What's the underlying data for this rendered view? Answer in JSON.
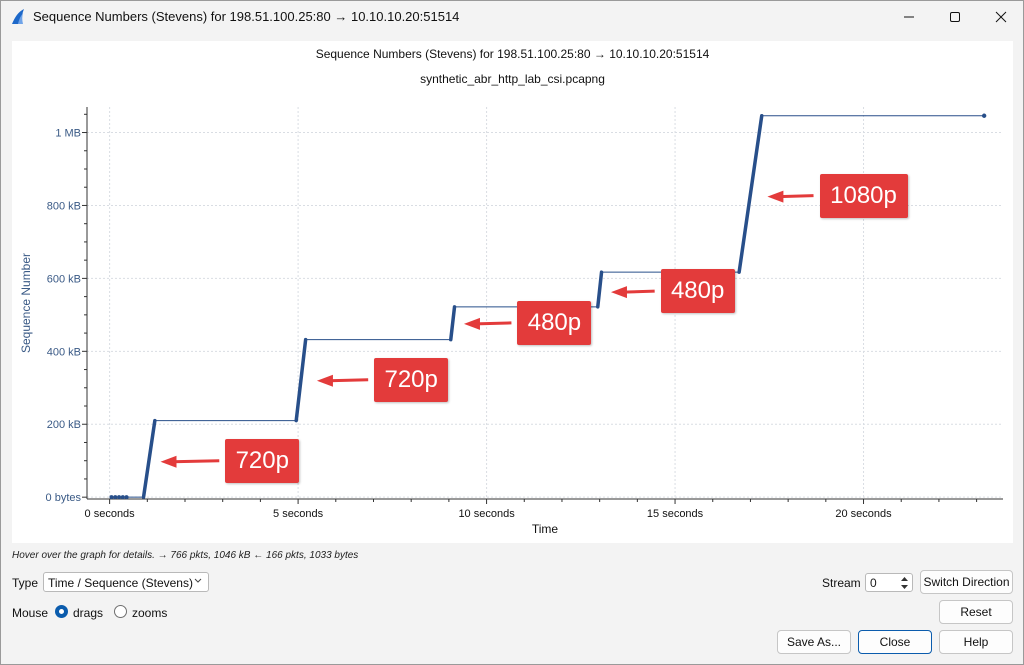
{
  "window": {
    "title": "Sequence Numbers (Stevens) for 198.51.100.25:80 → 10.10.10.20:51514",
    "icon": "wireshark-fin-icon"
  },
  "plot": {
    "title": "Sequence Numbers (Stevens) for 198.51.100.25:80 → 10.10.10.20:51514",
    "subtitle": "synthetic_abr_http_lab_csi.pcapng"
  },
  "chart_data": {
    "type": "scatter",
    "title": "Sequence Numbers (Stevens) for 198.51.100.25:80 → 10.10.10.20:51514",
    "subtitle": "synthetic_abr_http_lab_csi.pcapng",
    "xlabel": "Time",
    "ylabel": "Sequence Number",
    "x_unit": "seconds",
    "y_unit": "bytes",
    "xlim": [
      -0.6,
      23.7
    ],
    "ylim": [
      -5000,
      1070000
    ],
    "xticks": [
      {
        "value": 0,
        "label": "0 seconds"
      },
      {
        "value": 5,
        "label": "5 seconds"
      },
      {
        "value": 10,
        "label": "10 seconds"
      },
      {
        "value": 15,
        "label": "15 seconds"
      },
      {
        "value": 20,
        "label": "20 seconds"
      }
    ],
    "yticks": [
      {
        "value": 0,
        "label": "0 bytes"
      },
      {
        "value": 200000,
        "label": "200 kB"
      },
      {
        "value": 400000,
        "label": "400 kB"
      },
      {
        "value": 600000,
        "label": "600 kB"
      },
      {
        "value": 800000,
        "label": "800 kB"
      },
      {
        "value": 1000000,
        "label": "1 MB"
      }
    ],
    "grid": true,
    "color": "#284f8a",
    "handshake_points": [
      {
        "x": 0.05,
        "y": 0
      },
      {
        "x": 0.15,
        "y": 0
      },
      {
        "x": 0.25,
        "y": 0
      },
      {
        "x": 0.35,
        "y": 0
      },
      {
        "x": 0.45,
        "y": 0
      }
    ],
    "bursts": [
      {
        "x_start": 0.9,
        "x_end": 1.2,
        "y_start": 0,
        "y_end": 210000
      },
      {
        "x_start": 4.95,
        "x_end": 5.2,
        "y_start": 210000,
        "y_end": 432000
      },
      {
        "x_start": 9.05,
        "x_end": 9.15,
        "y_start": 432000,
        "y_end": 522000
      },
      {
        "x_start": 12.95,
        "x_end": 13.05,
        "y_start": 522000,
        "y_end": 617000
      },
      {
        "x_start": 16.7,
        "x_end": 17.3,
        "y_start": 617000,
        "y_end": 1046000
      }
    ],
    "final_point": {
      "x": 23.2,
      "y": 1046000
    },
    "annotations": [
      {
        "text": "720p",
        "x": 4.05,
        "y": 100000,
        "arrow_to_x": 1.35,
        "arrow_to_y": 100000
      },
      {
        "text": "720p",
        "x": 8.0,
        "y": 322000,
        "arrow_to_x": 5.5,
        "arrow_to_y": 322000
      },
      {
        "text": "480p",
        "x": 11.8,
        "y": 478000,
        "arrow_to_x": 9.4,
        "arrow_to_y": 478000
      },
      {
        "text": "480p",
        "x": 15.6,
        "y": 565000,
        "arrow_to_x": 13.3,
        "arrow_to_y": 565000
      },
      {
        "text": "1080p",
        "x": 20.0,
        "y": 827000,
        "arrow_to_x": 17.45,
        "arrow_to_y": 827000
      }
    ]
  },
  "status": {
    "hover_text": "Hover over the graph for details. → 766 pkts, 1046 kB ← 166 pkts, 1033 bytes"
  },
  "controls": {
    "type_label": "Type",
    "type_value": "Time / Sequence (Stevens)",
    "stream_label": "Stream",
    "stream_value": "0",
    "switch_direction": "Switch Direction",
    "mouse_label": "Mouse",
    "mouse_drags": "drags",
    "mouse_zooms": "zooms",
    "reset": "Reset",
    "save_as": "Save As...",
    "close": "Close",
    "help": "Help"
  },
  "colors": {
    "series": "#284f8a",
    "annotation": "#e33b3b",
    "accent": "#0b5cad"
  }
}
